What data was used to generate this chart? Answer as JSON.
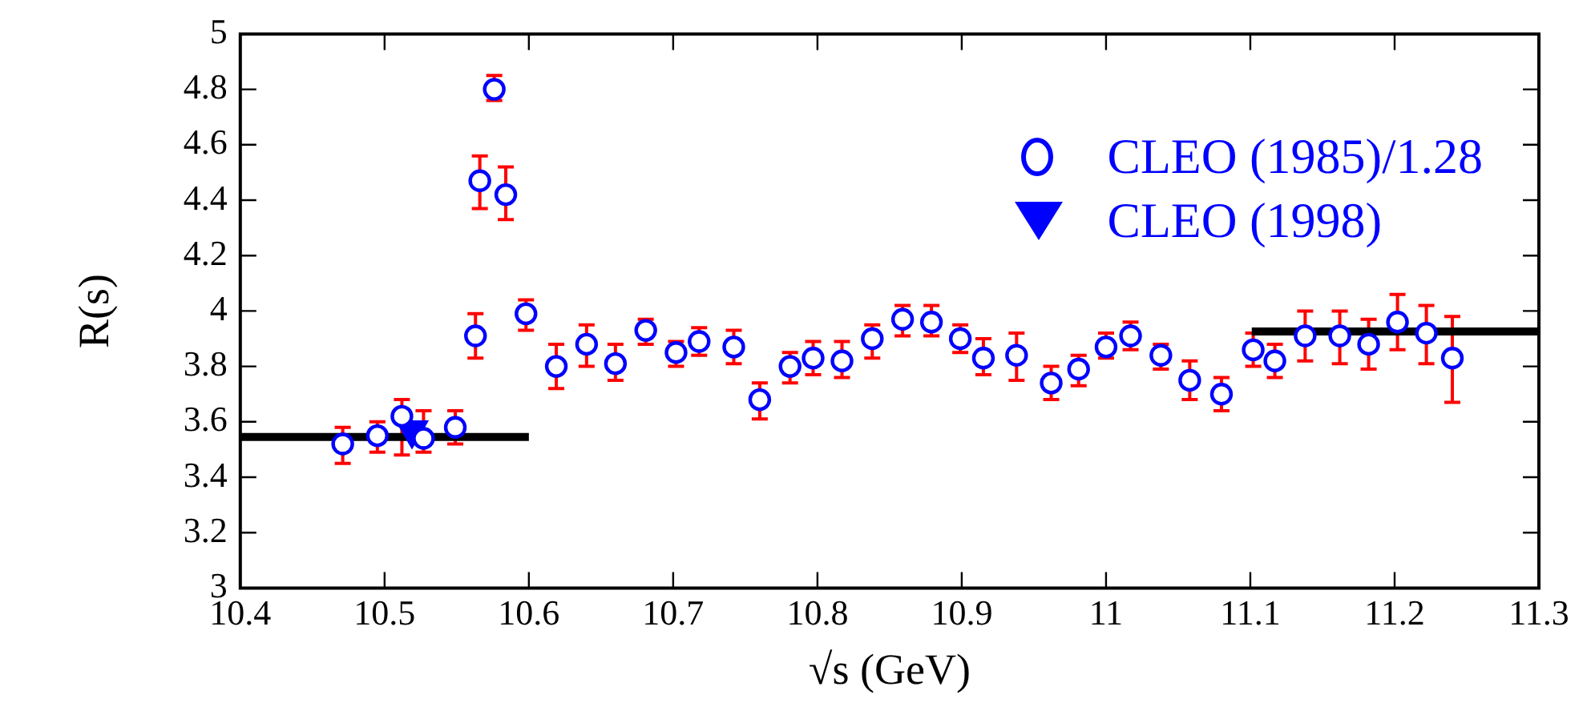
{
  "chart_data": {
    "type": "scatter",
    "xlabel": "√s (GeV)",
    "ylabel": "R(s)",
    "xlim": [
      10.4,
      11.3
    ],
    "xticks": [
      10.4,
      10.5,
      10.6,
      10.7,
      10.8,
      10.9,
      {
        "value": 11,
        "label": "11"
      },
      11.1,
      11.2,
      11.3
    ],
    "ylim": [
      3,
      5
    ],
    "yticks": [
      3,
      3.2,
      3.4,
      3.6,
      3.8,
      4,
      4.2,
      4.4,
      4.6,
      4.8,
      5
    ],
    "grid": false,
    "legend": "top right",
    "series": [
      {
        "name": "CLEO (1985)/1.28",
        "marker": "circle",
        "color": "#0000ff",
        "x": [
          10.471,
          10.495,
          10.512,
          10.527,
          10.549,
          10.563,
          10.566,
          10.576,
          10.584,
          10.598,
          10.619,
          10.64,
          10.66,
          10.681,
          10.702,
          10.718,
          10.742,
          10.76,
          10.781,
          10.797,
          10.817,
          10.838,
          10.859,
          10.879,
          10.899,
          10.915,
          10.938,
          10.962,
          10.981,
          11.0,
          11.017,
          11.038,
          11.058,
          11.08,
          11.102,
          11.117,
          11.138,
          11.162,
          11.182,
          11.202,
          11.222,
          11.24
        ],
        "values": [
          3.52,
          3.55,
          3.62,
          3.54,
          3.58,
          3.91,
          4.47,
          4.8,
          4.42,
          3.99,
          3.8,
          3.88,
          3.81,
          3.93,
          3.85,
          3.89,
          3.87,
          3.68,
          3.8,
          3.83,
          3.82,
          3.9,
          3.97,
          3.96,
          3.9,
          3.83,
          3.84,
          3.74,
          3.79,
          3.87,
          3.91,
          3.84,
          3.75,
          3.7,
          3.86,
          3.82,
          3.91,
          3.91,
          3.88,
          3.96,
          3.92,
          3.83
        ],
        "errors": [
          [
            3.45,
            3.58
          ],
          [
            3.49,
            3.6
          ],
          [
            3.48,
            3.68
          ],
          [
            3.49,
            3.64
          ],
          [
            3.52,
            3.64
          ],
          [
            3.83,
            3.99
          ],
          [
            4.37,
            4.56
          ],
          [
            4.76,
            4.85
          ],
          [
            4.33,
            4.52
          ],
          [
            3.93,
            4.04
          ],
          [
            3.72,
            3.88
          ],
          [
            3.8,
            3.95
          ],
          [
            3.75,
            3.88
          ],
          [
            3.88,
            3.97
          ],
          [
            3.8,
            3.89
          ],
          [
            3.84,
            3.94
          ],
          [
            3.81,
            3.93
          ],
          [
            3.61,
            3.74
          ],
          [
            3.74,
            3.85
          ],
          [
            3.77,
            3.89
          ],
          [
            3.76,
            3.89
          ],
          [
            3.83,
            3.95
          ],
          [
            3.91,
            4.02
          ],
          [
            3.91,
            4.02
          ],
          [
            3.85,
            3.95
          ],
          [
            3.77,
            3.9
          ],
          [
            3.75,
            3.92
          ],
          [
            3.68,
            3.8
          ],
          [
            3.73,
            3.84
          ],
          [
            3.83,
            3.92
          ],
          [
            3.86,
            3.96
          ],
          [
            3.79,
            3.88
          ],
          [
            3.68,
            3.82
          ],
          [
            3.64,
            3.76
          ],
          [
            3.8,
            3.92
          ],
          [
            3.76,
            3.88
          ],
          [
            3.82,
            4.0
          ],
          [
            3.81,
            4.0
          ],
          [
            3.79,
            3.97
          ],
          [
            3.86,
            4.06
          ],
          [
            3.81,
            4.02
          ],
          [
            3.67,
            3.98
          ]
        ]
      },
      {
        "name": "CLEO (1998)",
        "marker": "triangle",
        "color": "#0000ff",
        "x": [
          10.519
        ],
        "values": [
          3.57
        ]
      },
      {
        "type": "line",
        "color": "#000000",
        "x": [
          10.4,
          10.6
        ],
        "values": [
          3.545,
          3.545
        ]
      },
      {
        "type": "line",
        "color": "#000000",
        "x": [
          11.101,
          11.3
        ],
        "values": [
          3.926,
          3.926
        ]
      }
    ]
  }
}
